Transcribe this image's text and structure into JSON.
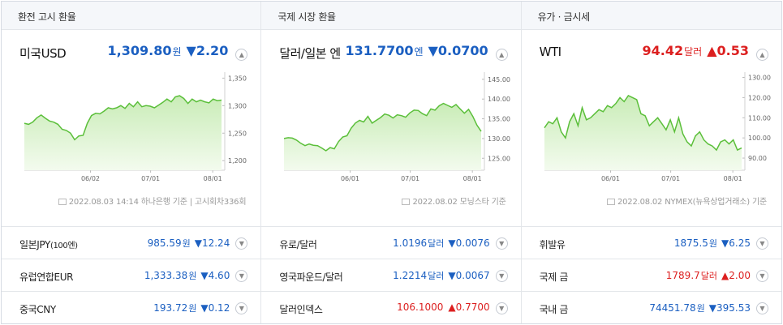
{
  "columns": [
    {
      "header": "환전 고시 환율",
      "main": {
        "name": "미국USD",
        "value": "1,309.80",
        "unit": "원",
        "arrow": "▼",
        "change": "2.20",
        "dir": "down"
      },
      "chart_data": {
        "type": "area",
        "x_ticks": [
          "06/02",
          "07/01",
          "08/01"
        ],
        "y_ticks": [
          "1,350",
          "1,300",
          "1,250",
          "1,200"
        ],
        "ylim": [
          1190,
          1355
        ],
        "values": [
          1268,
          1266,
          1270,
          1278,
          1283,
          1277,
          1272,
          1270,
          1266,
          1257,
          1255,
          1250,
          1238,
          1245,
          1246,
          1268,
          1282,
          1286,
          1285,
          1290,
          1296,
          1294,
          1296,
          1300,
          1295,
          1304,
          1298,
          1307,
          1298,
          1300,
          1299,
          1296,
          1301,
          1306,
          1312,
          1307,
          1316,
          1318,
          1313,
          1304,
          1312,
          1307,
          1310,
          1307,
          1305,
          1312,
          1309,
          1310
        ]
      },
      "source": "2022.08.03 14:14 하나은행 기준 | 고시회차336회",
      "rows": [
        {
          "name": "일본JPY",
          "sub": "(100엔)",
          "value": "985.59",
          "unit": "원",
          "arrow": "▼",
          "change": "12.24",
          "dir": "down"
        },
        {
          "name": "유럽연합EUR",
          "sub": "",
          "value": "1,333.38",
          "unit": "원",
          "arrow": "▼",
          "change": "4.60",
          "dir": "down"
        },
        {
          "name": "중국CNY",
          "sub": "",
          "value": "193.72",
          "unit": "원",
          "arrow": "▼",
          "change": "0.12",
          "dir": "down"
        }
      ]
    },
    {
      "header": "국제 시장 환율",
      "main": {
        "name": "달러/일본 엔",
        "value": "131.7700",
        "unit": "엔",
        "arrow": "▼",
        "change": "0.0700",
        "dir": "down"
      },
      "chart_data": {
        "type": "area",
        "x_ticks": [
          "06/01",
          "07/01",
          "08/01"
        ],
        "y_ticks": [
          "145.00",
          "140.00",
          "135.00",
          "130.00",
          "125.00"
        ],
        "ylim": [
          123,
          146
        ],
        "values": [
          130.0,
          130.2,
          130.1,
          129.6,
          128.8,
          128.2,
          128.6,
          128.3,
          128.2,
          127.6,
          126.9,
          127.7,
          127.4,
          129.2,
          130.4,
          130.7,
          132.6,
          133.9,
          134.6,
          134.2,
          135.6,
          133.9,
          134.6,
          135.3,
          136.2,
          135.9,
          135.2,
          136.0,
          135.8,
          135.4,
          136.5,
          137.2,
          137.1,
          136.3,
          135.8,
          137.5,
          137.2,
          138.3,
          138.9,
          138.4,
          137.9,
          138.6,
          137.5,
          136.4,
          137.4,
          135.6,
          133.4,
          131.8
        ]
      },
      "source": "2022.08.02 모닝스타 기준",
      "rows": [
        {
          "name": "유로/달러",
          "sub": "",
          "value": "1.0196",
          "unit": "달러",
          "arrow": "▼",
          "change": "0.0076",
          "dir": "down"
        },
        {
          "name": "영국파운드/달러",
          "sub": "",
          "value": "1.2214",
          "unit": "달러",
          "arrow": "▼",
          "change": "0.0067",
          "dir": "down"
        },
        {
          "name": "달러인덱스",
          "sub": "",
          "value": "106.1000",
          "unit": "",
          "arrow": "▲",
          "change": "0.7700",
          "dir": "up"
        }
      ]
    },
    {
      "header": "유가 · 금시세",
      "main": {
        "name": "WTI",
        "value": "94.42",
        "unit": "달러",
        "arrow": "▲",
        "change": "0.53",
        "dir": "up"
      },
      "chart_data": {
        "type": "area",
        "x_ticks": [
          "06/01",
          "07/01",
          "08/01"
        ],
        "y_ticks": [
          "130.00",
          "120.00",
          "110.00",
          "100.00",
          "90.00"
        ],
        "ylim": [
          86,
          131
        ],
        "values": [
          105,
          108,
          107,
          110,
          103,
          100,
          108,
          112,
          106,
          115,
          109,
          110,
          112,
          114,
          113,
          116,
          115,
          117,
          120,
          118,
          121,
          120,
          119,
          112,
          111,
          106,
          108,
          110,
          107,
          104,
          109,
          103,
          110,
          102,
          98,
          96,
          101,
          103,
          99,
          97,
          96,
          94,
          98,
          99,
          97,
          99,
          94,
          95
        ]
      },
      "source": "2022.08.02 NYMEX(뉴욕상업거래소) 기준",
      "rows": [
        {
          "name": "휘발유",
          "sub": "",
          "value": "1875.5",
          "unit": "원",
          "arrow": "▼",
          "change": "6.25",
          "dir": "down"
        },
        {
          "name": "국제 금",
          "sub": "",
          "value": "1789.7",
          "unit": "달러",
          "arrow": "▲",
          "change": "2.00",
          "dir": "up"
        },
        {
          "name": "국내 금",
          "sub": "",
          "value": "74451.78",
          "unit": "원",
          "arrow": "▼",
          "change": "395.53",
          "dir": "down"
        }
      ]
    }
  ],
  "colors": {
    "down": "#1b5fc1",
    "up": "#dc1f1f",
    "line": "#5bbf3a",
    "fill_top": "#c9ecb7",
    "fill_bottom": "#f3fbee"
  },
  "icons": {
    "toggle": "chevron-up-icon",
    "row_toggle": "chevron-down-icon",
    "source": "document-icon"
  }
}
